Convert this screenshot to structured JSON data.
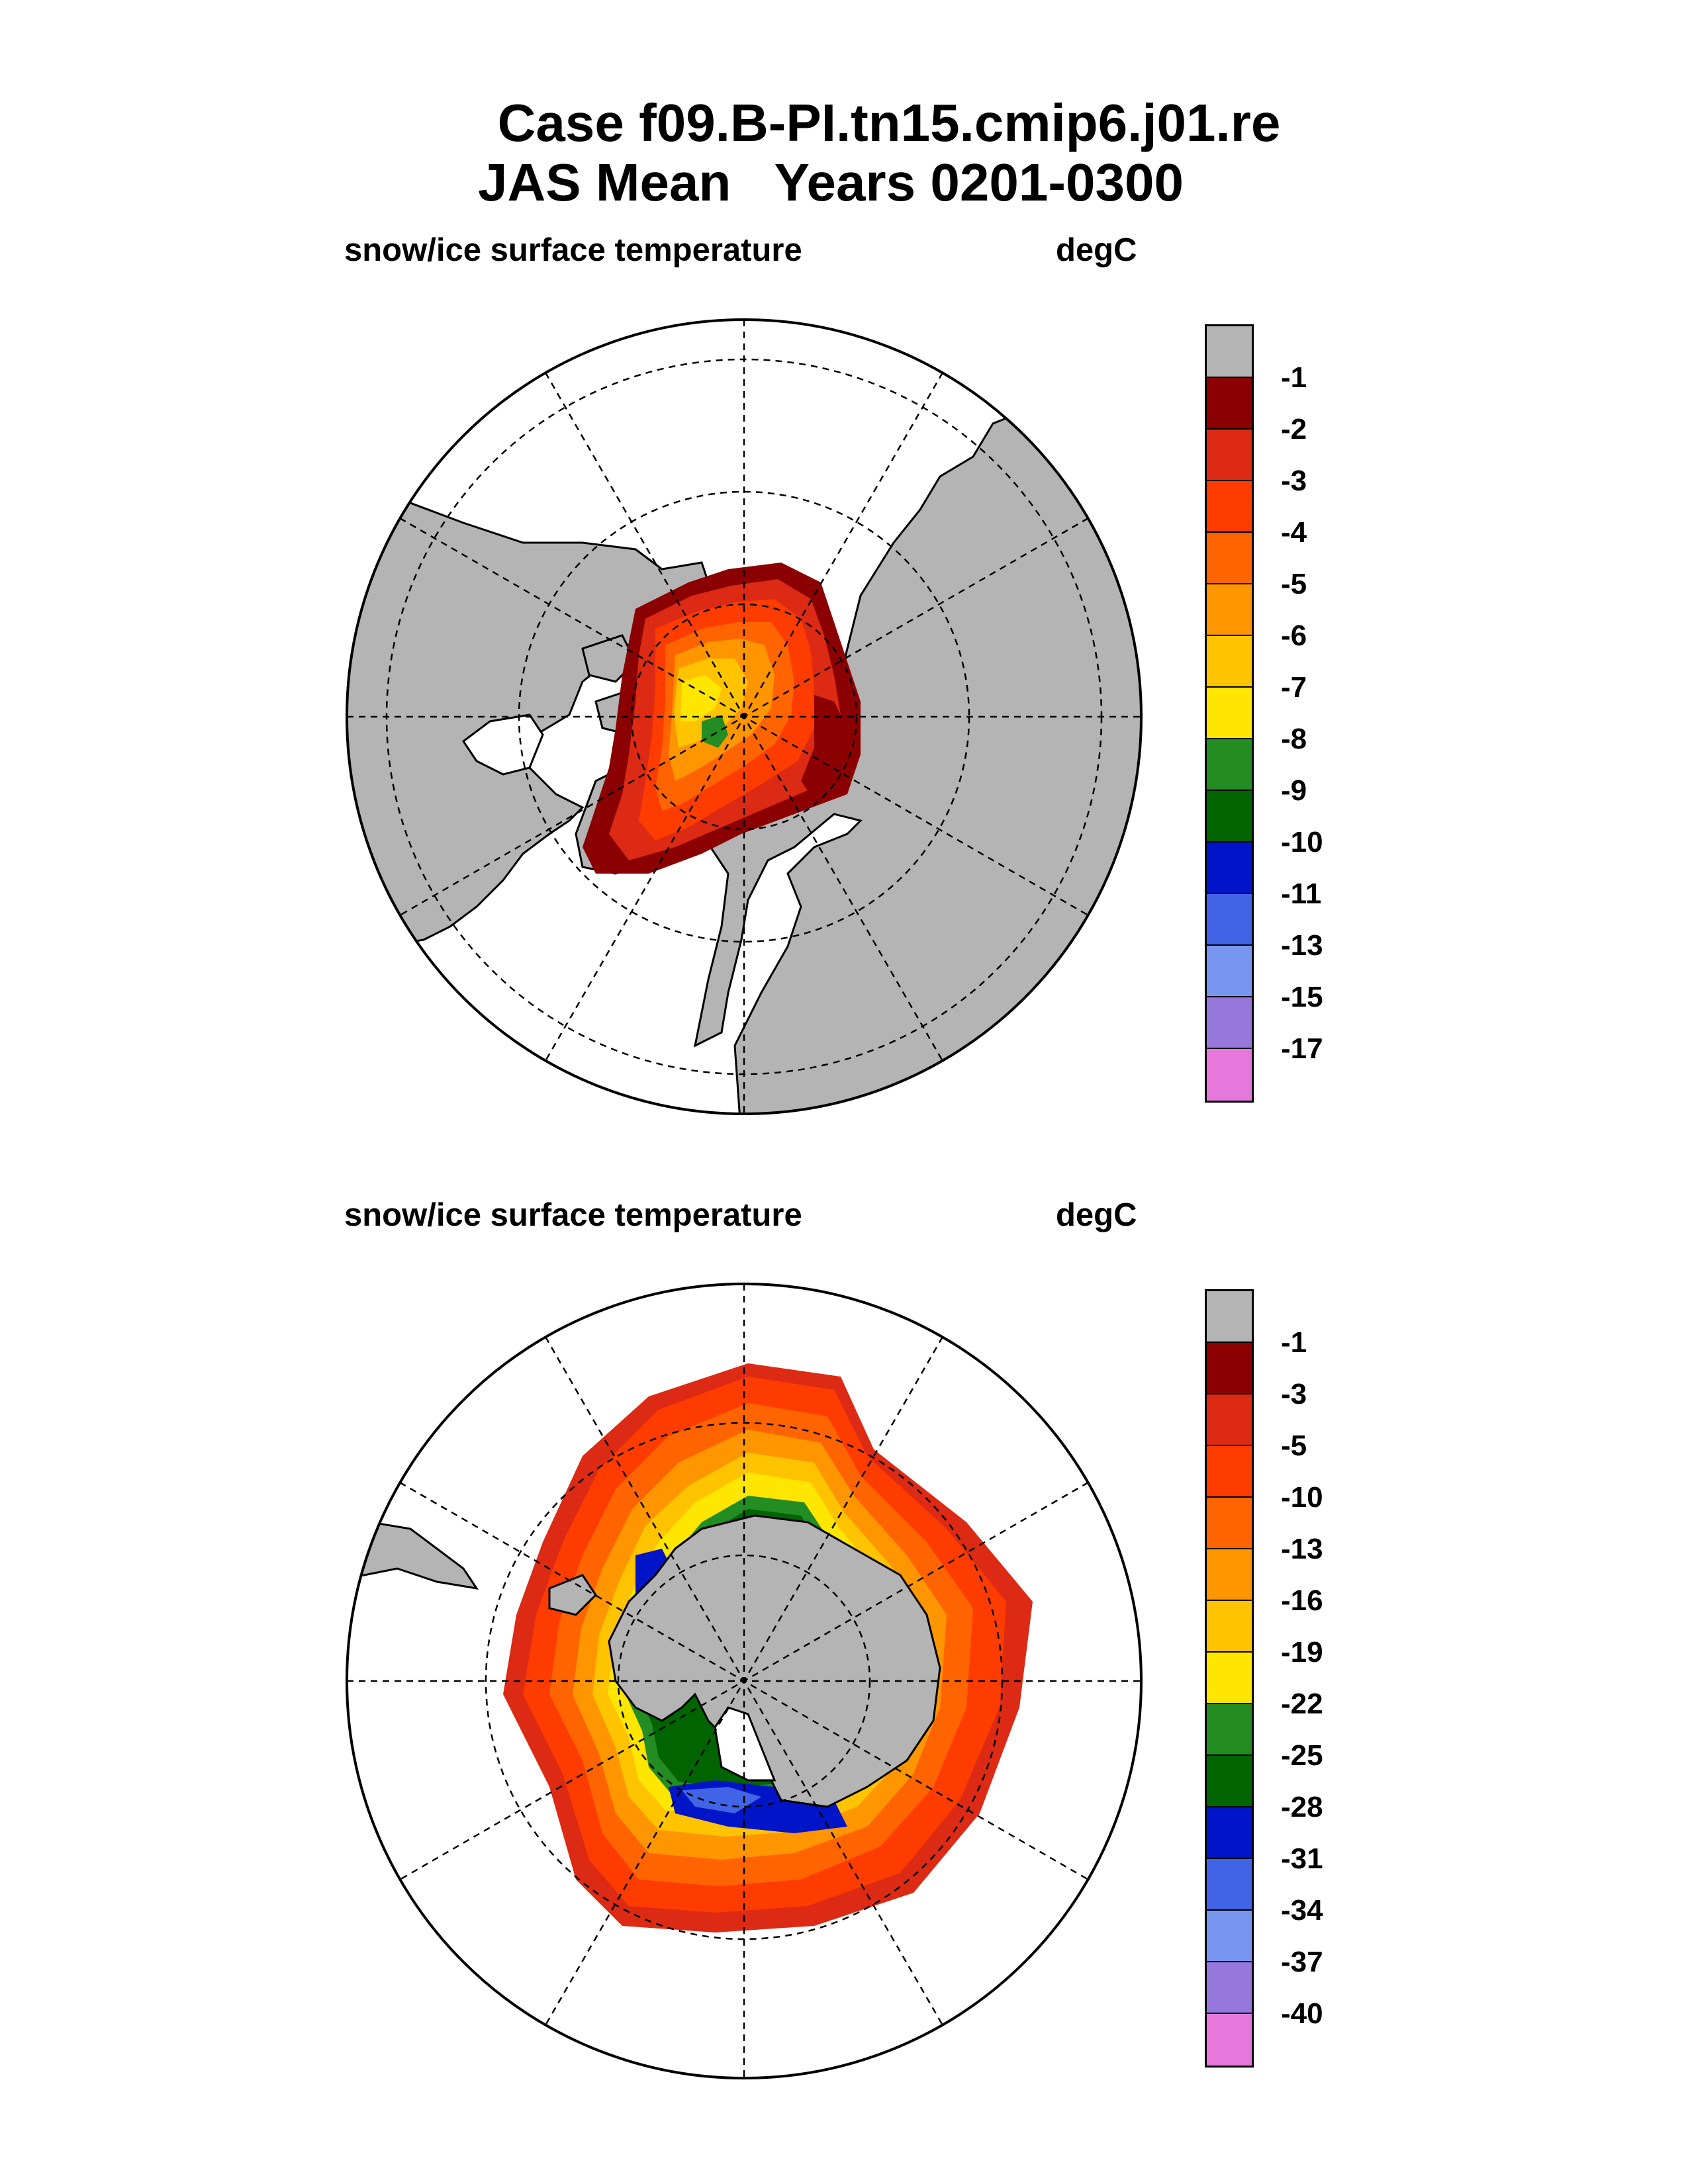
{
  "title": {
    "line1": "Case f09.B-PI.tn15.cmip6.j01.re",
    "line2": "JAS Mean   Years 0201-0300"
  },
  "panels": [
    {
      "name": "arctic",
      "variable_label": "snow/ice surface temperature",
      "units": "degC",
      "colorbar": {
        "labels": [
          "-1",
          "-2",
          "-3",
          "-4",
          "-5",
          "-6",
          "-7",
          "-8",
          "-9",
          "-10",
          "-11",
          "-13",
          "-15",
          "-17"
        ],
        "colors": [
          "#b4b4b4",
          "#8b0000",
          "#dc2a14",
          "#ff3c00",
          "#ff6400",
          "#ff9600",
          "#ffc300",
          "#ffe600",
          "#238c23",
          "#006400",
          "#0014c8",
          "#4164e6",
          "#7896f0",
          "#9678dc",
          "#e678dc"
        ]
      }
    },
    {
      "name": "antarctic",
      "variable_label": "snow/ice surface temperature",
      "units": "degC",
      "colorbar": {
        "labels": [
          "-1",
          "-3",
          "-5",
          "-10",
          "-13",
          "-16",
          "-19",
          "-22",
          "-25",
          "-28",
          "-31",
          "-34",
          "-37",
          "-40"
        ],
        "colors": [
          "#b4b4b4",
          "#8b0000",
          "#dc2a14",
          "#ff3c00",
          "#ff6400",
          "#ff9600",
          "#ffc300",
          "#ffe600",
          "#238c23",
          "#006400",
          "#0014c8",
          "#4164e6",
          "#7896f0",
          "#9678dc",
          "#e678dc"
        ]
      }
    }
  ]
}
